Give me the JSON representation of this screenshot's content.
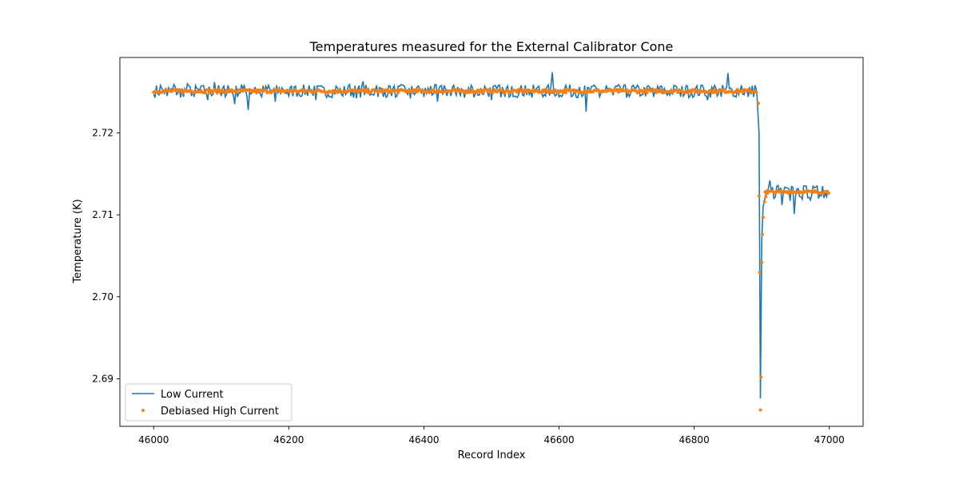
{
  "chart_data": {
    "type": "line",
    "title": "Temperatures measured for the External Calibrator Cone",
    "xlabel": "Record Index",
    "ylabel": "Temperature (K)",
    "xlim": [
      45950,
      47050
    ],
    "ylim": [
      2.6842,
      2.7292
    ],
    "xticks": [
      46000,
      46200,
      46400,
      46600,
      46800,
      47000
    ],
    "yticks": [
      2.69,
      2.7,
      2.71,
      2.72
    ],
    "ytick_labels": [
      "2.69",
      "2.70",
      "2.71",
      "2.72"
    ],
    "legend": {
      "placement": "lower-left"
    },
    "grid": false,
    "series": [
      {
        "name": "Low Current",
        "style": "line",
        "color": "#1f77b4",
        "points": [
          [
            46000,
            2.7247
          ],
          [
            46010,
            2.7258
          ],
          [
            46020,
            2.7245
          ],
          [
            46030,
            2.7259
          ],
          [
            46040,
            2.7243
          ],
          [
            46050,
            2.726
          ],
          [
            46060,
            2.7244
          ],
          [
            46070,
            2.7257
          ],
          [
            46080,
            2.724
          ],
          [
            46090,
            2.7262
          ],
          [
            46100,
            2.7245
          ],
          [
            46110,
            2.7258
          ],
          [
            46120,
            2.7235
          ],
          [
            46130,
            2.7259
          ],
          [
            46140,
            2.7228
          ],
          [
            46150,
            2.7256
          ],
          [
            46160,
            2.7244
          ],
          [
            46170,
            2.7258
          ],
          [
            46180,
            2.7238
          ],
          [
            46190,
            2.7255
          ],
          [
            46200,
            2.7245
          ],
          [
            46210,
            2.7257
          ],
          [
            46220,
            2.7246
          ],
          [
            46230,
            2.7258
          ],
          [
            46240,
            2.724
          ],
          [
            46250,
            2.7256
          ],
          [
            46260,
            2.7244
          ],
          [
            46270,
            2.7257
          ],
          [
            46280,
            2.7245
          ],
          [
            46290,
            2.7259
          ],
          [
            46300,
            2.7242
          ],
          [
            46310,
            2.7263
          ],
          [
            46320,
            2.7246
          ],
          [
            46330,
            2.7258
          ],
          [
            46340,
            2.7244
          ],
          [
            46350,
            2.7257
          ],
          [
            46360,
            2.7245
          ],
          [
            46370,
            2.7258
          ],
          [
            46380,
            2.7242
          ],
          [
            46390,
            2.7256
          ],
          [
            46400,
            2.7244
          ],
          [
            46410,
            2.7257
          ],
          [
            46420,
            2.7238
          ],
          [
            46430,
            2.7258
          ],
          [
            46440,
            2.7245
          ],
          [
            46450,
            2.7256
          ],
          [
            46460,
            2.7243
          ],
          [
            46470,
            2.7258
          ],
          [
            46480,
            2.7246
          ],
          [
            46490,
            2.7257
          ],
          [
            46500,
            2.724
          ],
          [
            46510,
            2.7258
          ],
          [
            46520,
            2.7244
          ],
          [
            46530,
            2.7257
          ],
          [
            46540,
            2.7246
          ],
          [
            46550,
            2.7258
          ],
          [
            46560,
            2.7243
          ],
          [
            46570,
            2.7257
          ],
          [
            46580,
            2.7245
          ],
          [
            46590,
            2.7274
          ],
          [
            46600,
            2.7244
          ],
          [
            46610,
            2.7258
          ],
          [
            46620,
            2.7245
          ],
          [
            46630,
            2.7256
          ],
          [
            46640,
            2.7226
          ],
          [
            46650,
            2.7257
          ],
          [
            46660,
            2.7244
          ],
          [
            46670,
            2.7258
          ],
          [
            46680,
            2.7246
          ],
          [
            46690,
            2.7257
          ],
          [
            46700,
            2.7243
          ],
          [
            46710,
            2.7258
          ],
          [
            46720,
            2.7245
          ],
          [
            46730,
            2.7256
          ],
          [
            46740,
            2.7244
          ],
          [
            46750,
            2.7257
          ],
          [
            46760,
            2.7246
          ],
          [
            46770,
            2.7258
          ],
          [
            46780,
            2.7244
          ],
          [
            46790,
            2.7257
          ],
          [
            46800,
            2.7245
          ],
          [
            46810,
            2.7258
          ],
          [
            46820,
            2.724
          ],
          [
            46830,
            2.7258
          ],
          [
            46840,
            2.7244
          ],
          [
            46850,
            2.7273
          ],
          [
            46860,
            2.7245
          ],
          [
            46870,
            2.7258
          ],
          [
            46880,
            2.7244
          ],
          [
            46890,
            2.7258
          ],
          [
            46893,
            2.7245
          ],
          [
            46896,
            2.72
          ],
          [
            46898,
            2.6876
          ],
          [
            46900,
            2.707
          ],
          [
            46902,
            2.711
          ],
          [
            46906,
            2.7125
          ],
          [
            46912,
            2.7142
          ],
          [
            46918,
            2.712
          ],
          [
            46924,
            2.7136
          ],
          [
            46930,
            2.7112
          ],
          [
            46936,
            2.7133
          ],
          [
            46942,
            2.7117
          ],
          [
            46948,
            2.7101
          ],
          [
            46954,
            2.7132
          ],
          [
            46960,
            2.7119
          ],
          [
            46966,
            2.7135
          ],
          [
            46972,
            2.7118
          ],
          [
            46978,
            2.7133
          ],
          [
            46984,
            2.712
          ],
          [
            46990,
            2.7135
          ],
          [
            46996,
            2.7122
          ],
          [
            47000,
            2.7126
          ]
        ]
      },
      {
        "name": "Debiased High Current",
        "style": "points",
        "color": "#ff7f0e",
        "points": [
          [
            46895,
            2.7236
          ],
          [
            46896,
            2.7123
          ],
          [
            46897,
            2.703
          ],
          [
            46898,
            2.6862
          ],
          [
            46899,
            2.6902
          ],
          [
            46900,
            2.7042
          ],
          [
            46901,
            2.7076
          ],
          [
            46902,
            2.7097
          ],
          [
            46904,
            2.7116
          ],
          [
            46906,
            2.7122
          ],
          [
            46908,
            2.7126
          ]
        ],
        "band": {
          "x": [
            46000,
            46893
          ],
          "y_center": 2.7251,
          "y_spread": 0.0004
        },
        "band2": {
          "x": [
            46905,
            47000
          ],
          "y_center": 2.7128,
          "y_spread": 0.0003
        }
      }
    ]
  }
}
